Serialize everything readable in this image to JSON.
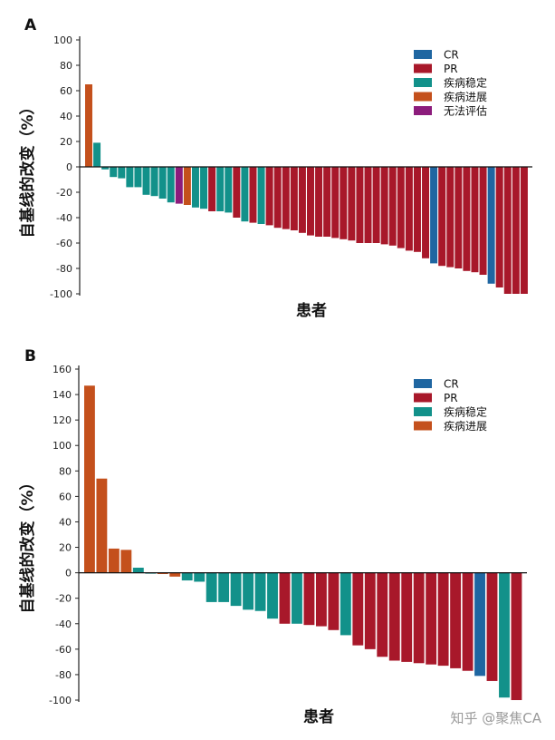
{
  "legend_colors": {
    "CR": "#1f66a1",
    "PR": "#a8182a",
    "SD": "#12918a",
    "PD": "#c4501c",
    "NE": "#8c1c7c"
  },
  "watermark": "知乎 @聚焦CA",
  "chart_data": [
    {
      "panel_label": "A",
      "type": "bar",
      "ylabel": "自基线的改变（%）",
      "xlabel": "患者",
      "ylim": [
        -100,
        100
      ],
      "yticks": [
        100,
        80,
        60,
        40,
        20,
        0,
        -20,
        -40,
        -60,
        -80,
        -100
      ],
      "grid": false,
      "legend_placement": "top-right",
      "legend": [
        {
          "key": "CR",
          "label": "CR"
        },
        {
          "key": "PR",
          "label": "PR"
        },
        {
          "key": "SD",
          "label": "疾病稳定"
        },
        {
          "key": "PD",
          "label": "疾病进展"
        },
        {
          "key": "NE",
          "label": "无法评估"
        }
      ],
      "bars": [
        {
          "value": 65,
          "response": "PD"
        },
        {
          "value": 19,
          "response": "SD"
        },
        {
          "value": -2,
          "response": "SD"
        },
        {
          "value": -8,
          "response": "SD"
        },
        {
          "value": -9,
          "response": "SD"
        },
        {
          "value": -16,
          "response": "SD"
        },
        {
          "value": -16,
          "response": "SD"
        },
        {
          "value": -22,
          "response": "SD"
        },
        {
          "value": -23,
          "response": "SD"
        },
        {
          "value": -25,
          "response": "SD"
        },
        {
          "value": -28,
          "response": "SD"
        },
        {
          "value": -29,
          "response": "NE"
        },
        {
          "value": -30,
          "response": "PD"
        },
        {
          "value": -32,
          "response": "SD"
        },
        {
          "value": -33,
          "response": "SD"
        },
        {
          "value": -35,
          "response": "PR"
        },
        {
          "value": -35,
          "response": "SD"
        },
        {
          "value": -36,
          "response": "SD"
        },
        {
          "value": -40,
          "response": "PR"
        },
        {
          "value": -43,
          "response": "SD"
        },
        {
          "value": -44,
          "response": "PR"
        },
        {
          "value": -45,
          "response": "SD"
        },
        {
          "value": -46,
          "response": "PR"
        },
        {
          "value": -48,
          "response": "PR"
        },
        {
          "value": -49,
          "response": "PR"
        },
        {
          "value": -50,
          "response": "PR"
        },
        {
          "value": -52,
          "response": "PR"
        },
        {
          "value": -54,
          "response": "PR"
        },
        {
          "value": -55,
          "response": "PR"
        },
        {
          "value": -55,
          "response": "PR"
        },
        {
          "value": -56,
          "response": "PR"
        },
        {
          "value": -57,
          "response": "PR"
        },
        {
          "value": -58,
          "response": "PR"
        },
        {
          "value": -60,
          "response": "PR"
        },
        {
          "value": -60,
          "response": "PR"
        },
        {
          "value": -60,
          "response": "PR"
        },
        {
          "value": -61,
          "response": "PR"
        },
        {
          "value": -62,
          "response": "PR"
        },
        {
          "value": -64,
          "response": "PR"
        },
        {
          "value": -66,
          "response": "PR"
        },
        {
          "value": -67,
          "response": "PR"
        },
        {
          "value": -72,
          "response": "PR"
        },
        {
          "value": -76,
          "response": "CR"
        },
        {
          "value": -78,
          "response": "PR"
        },
        {
          "value": -79,
          "response": "PR"
        },
        {
          "value": -80,
          "response": "PR"
        },
        {
          "value": -82,
          "response": "PR"
        },
        {
          "value": -83,
          "response": "PR"
        },
        {
          "value": -85,
          "response": "PR"
        },
        {
          "value": -92,
          "response": "CR"
        },
        {
          "value": -95,
          "response": "PR"
        },
        {
          "value": -100,
          "response": "PR"
        },
        {
          "value": -100,
          "response": "PR"
        },
        {
          "value": -100,
          "response": "PR"
        }
      ]
    },
    {
      "panel_label": "B",
      "type": "bar",
      "ylabel": "自基线的改变（%）",
      "xlabel": "患者",
      "ylim": [
        -100,
        160
      ],
      "yticks": [
        160,
        140,
        120,
        100,
        80,
        60,
        40,
        20,
        0,
        -20,
        -40,
        -60,
        -80,
        -100
      ],
      "grid": false,
      "legend_placement": "top-right",
      "legend": [
        {
          "key": "CR",
          "label": "CR"
        },
        {
          "key": "PR",
          "label": "PR"
        },
        {
          "key": "SD",
          "label": "疾病稳定"
        },
        {
          "key": "PD",
          "label": "疾病进展"
        }
      ],
      "bars": [
        {
          "value": 147,
          "response": "PD"
        },
        {
          "value": 74,
          "response": "PD"
        },
        {
          "value": 19,
          "response": "PD"
        },
        {
          "value": 18,
          "response": "PD"
        },
        {
          "value": 4,
          "response": "SD"
        },
        {
          "value": 0,
          "response": "SD"
        },
        {
          "value": -1,
          "response": "PD"
        },
        {
          "value": -3,
          "response": "PD"
        },
        {
          "value": -6,
          "response": "SD"
        },
        {
          "value": -7,
          "response": "SD"
        },
        {
          "value": -23,
          "response": "SD"
        },
        {
          "value": -23,
          "response": "SD"
        },
        {
          "value": -26,
          "response": "SD"
        },
        {
          "value": -29,
          "response": "SD"
        },
        {
          "value": -30,
          "response": "SD"
        },
        {
          "value": -36,
          "response": "SD"
        },
        {
          "value": -40,
          "response": "PR"
        },
        {
          "value": -40,
          "response": "SD"
        },
        {
          "value": -41,
          "response": "PR"
        },
        {
          "value": -42,
          "response": "PR"
        },
        {
          "value": -45,
          "response": "PR"
        },
        {
          "value": -49,
          "response": "SD"
        },
        {
          "value": -57,
          "response": "PR"
        },
        {
          "value": -60,
          "response": "PR"
        },
        {
          "value": -66,
          "response": "PR"
        },
        {
          "value": -69,
          "response": "PR"
        },
        {
          "value": -70,
          "response": "PR"
        },
        {
          "value": -71,
          "response": "PR"
        },
        {
          "value": -72,
          "response": "PR"
        },
        {
          "value": -73,
          "response": "PR"
        },
        {
          "value": -75,
          "response": "PR"
        },
        {
          "value": -77,
          "response": "PR"
        },
        {
          "value": -81,
          "response": "CR"
        },
        {
          "value": -85,
          "response": "PR"
        },
        {
          "value": -98,
          "response": "SD"
        },
        {
          "value": -100,
          "response": "PR"
        }
      ]
    }
  ]
}
